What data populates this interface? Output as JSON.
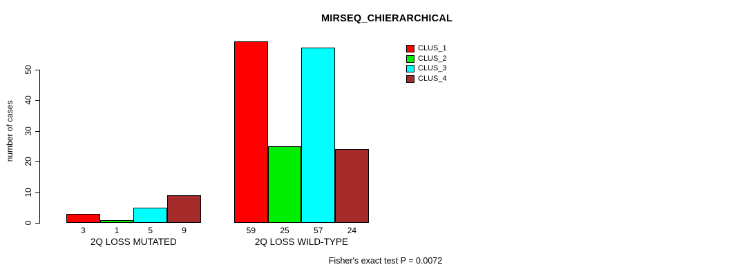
{
  "chart_data": {
    "type": "bar",
    "title": "MIRSEQ_CHIERARCHICAL",
    "ylabel": "number of cases",
    "xlabel": "",
    "ylim": [
      0,
      50
    ],
    "yticks": [
      0,
      10,
      20,
      30,
      40,
      50
    ],
    "grid": false,
    "legend_position": "top-right",
    "groups": [
      {
        "label": "2Q LOSS MUTATED",
        "values": [
          3,
          1,
          5,
          9
        ]
      },
      {
        "label": "2Q LOSS WILD-TYPE",
        "values": [
          59,
          25,
          57,
          24
        ]
      }
    ],
    "series": [
      {
        "name": "CLUS_1",
        "color": "#ff0000",
        "values": [
          3,
          59
        ]
      },
      {
        "name": "CLUS_2",
        "color": "#00ee00",
        "values": [
          1,
          25
        ]
      },
      {
        "name": "CLUS_3",
        "color": "#00ffff",
        "values": [
          5,
          57
        ]
      },
      {
        "name": "CLUS_4",
        "color": "#a52a2a",
        "values": [
          9,
          24
        ]
      }
    ],
    "bar_value_labels": true,
    "annotation": "Fisher's exact test P = 0.0072"
  }
}
